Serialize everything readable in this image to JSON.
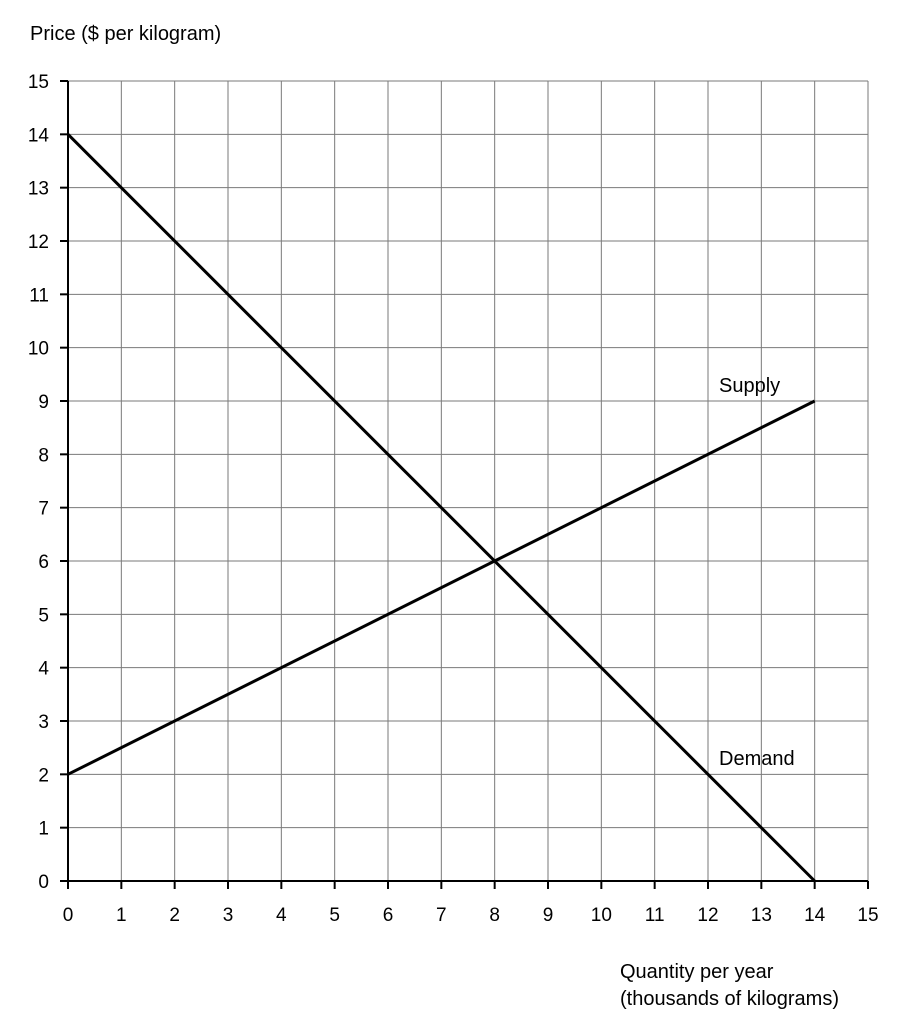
{
  "chart_data": {
    "type": "line",
    "ylabel": "Price ($ per kilogram)",
    "xlabel_lines": [
      "Quantity per year",
      "(thousands of kilograms)"
    ],
    "xlim": [
      0,
      15
    ],
    "ylim": [
      0,
      15
    ],
    "x_ticks": [
      0,
      1,
      2,
      3,
      4,
      5,
      6,
      7,
      8,
      9,
      10,
      11,
      12,
      13,
      14,
      15
    ],
    "y_ticks": [
      0,
      1,
      2,
      3,
      4,
      5,
      6,
      7,
      8,
      9,
      10,
      11,
      12,
      13,
      14,
      15
    ],
    "grid": true,
    "series": [
      {
        "name": "Supply",
        "x": [
          0,
          14
        ],
        "y": [
          2,
          9
        ],
        "color": "#000000"
      },
      {
        "name": "Demand",
        "x": [
          0,
          14
        ],
        "y": [
          14,
          0
        ],
        "color": "#000000"
      }
    ]
  }
}
